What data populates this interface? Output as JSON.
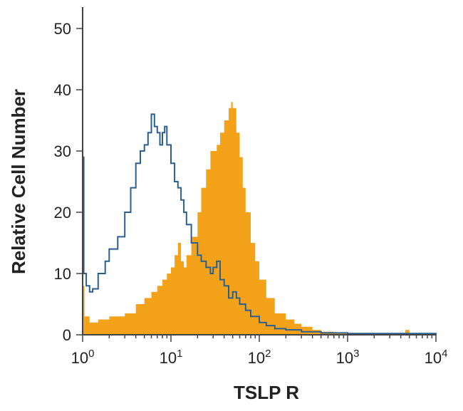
{
  "chart_data": {
    "type": "area",
    "xlabel": "TSLP R",
    "ylabel": "Relative Cell Number",
    "xscale": "log",
    "xlim": [
      1,
      10000
    ],
    "ylim": [
      0,
      50
    ],
    "xticks": [
      {
        "base": "10",
        "exp": "0"
      },
      {
        "base": "10",
        "exp": "1"
      },
      {
        "base": "10",
        "exp": "2"
      },
      {
        "base": "10",
        "exp": "3"
      },
      {
        "base": "10",
        "exp": "4"
      }
    ],
    "yticks": [
      "0",
      "10",
      "20",
      "30",
      "40",
      "50"
    ],
    "grid": false,
    "legend": "none",
    "series": [
      {
        "style": "filled",
        "color": "#f5a21b",
        "x": [
          1,
          1.05,
          1.2,
          1.5,
          2,
          3,
          4,
          5,
          6,
          7,
          8,
          9,
          10,
          11,
          12,
          13,
          14,
          15,
          17,
          20,
          22,
          25,
          28,
          30,
          33,
          36,
          40,
          45,
          48,
          50,
          55,
          60,
          65,
          70,
          80,
          90,
          100,
          120,
          150,
          200,
          250,
          300,
          400,
          500,
          700,
          1000,
          2000,
          3000,
          4000,
          4500,
          5000,
          6000,
          10000
        ],
        "y": [
          8,
          3,
          2,
          2.5,
          3,
          3.5,
          5,
          6,
          7,
          8,
          9,
          10,
          11,
          13,
          15,
          12,
          11,
          13,
          16,
          20,
          24,
          27,
          30,
          30,
          31,
          33,
          35,
          37,
          38,
          37,
          33,
          29,
          24,
          20,
          15,
          12,
          9,
          6,
          3.5,
          2.5,
          1.8,
          1.3,
          0.8,
          0.5,
          0.3,
          0.3,
          0.2,
          0.3,
          0.2,
          0.8,
          0.2,
          0.1,
          0
        ]
      },
      {
        "style": "outline",
        "color": "#2a5f8f",
        "x": [
          1,
          1.03,
          1.1,
          1.2,
          1.3,
          1.5,
          1.8,
          2,
          2.5,
          3,
          3.5,
          4,
          4.5,
          5,
          5.5,
          6,
          6.5,
          7,
          7.5,
          8,
          8.5,
          9,
          10,
          11,
          12,
          13,
          14,
          15,
          17,
          20,
          22,
          25,
          28,
          30,
          33,
          36,
          40,
          45,
          50,
          55,
          60,
          70,
          80,
          100,
          120,
          150,
          200,
          300,
          500,
          1000,
          3000,
          10000
        ],
        "y": [
          29,
          10,
          8,
          7,
          7.5,
          10,
          12,
          14,
          16,
          20,
          24,
          28,
          30,
          31,
          33,
          36,
          34,
          33,
          31,
          33,
          34,
          31,
          28,
          25,
          24,
          22,
          20,
          18,
          15,
          13,
          12,
          11,
          10,
          11,
          12,
          9,
          8,
          6,
          7,
          6,
          5,
          4,
          3,
          2,
          1.5,
          1,
          0.8,
          0.5,
          0.3,
          0.2,
          0.2,
          0
        ]
      }
    ]
  }
}
